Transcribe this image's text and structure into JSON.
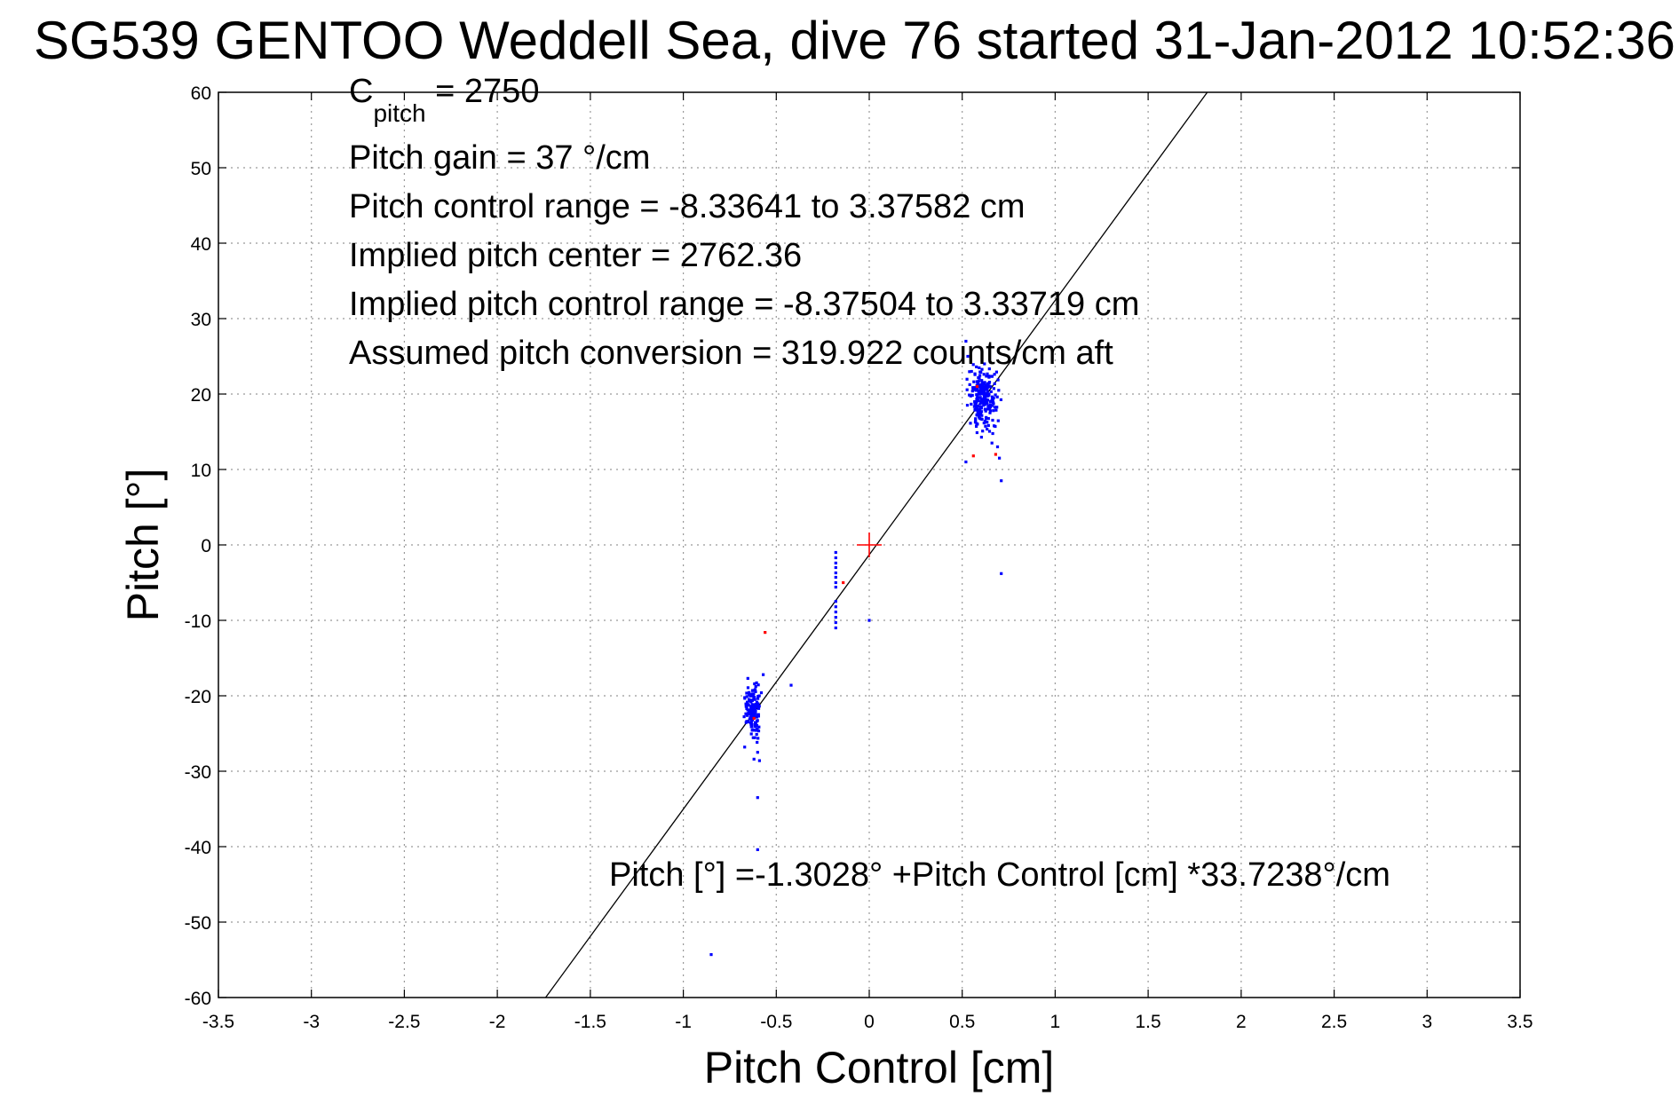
{
  "chart_data": {
    "type": "scatter",
    "title": "SG539 GENTOO Weddell Sea, dive 76 started 31-Jan-2012 10:52:36",
    "xlabel": "Pitch Control [cm]",
    "ylabel": "Pitch [°]",
    "xlim": [
      -3.5,
      3.5
    ],
    "ylim": [
      -60,
      60
    ],
    "xticks": [
      -3.5,
      -3,
      -2.5,
      -2,
      -1.5,
      -1,
      -0.5,
      0,
      0.5,
      1,
      1.5,
      2,
      2.5,
      3,
      3.5
    ],
    "xtick_labels": [
      "-3.5",
      "-3",
      "-2.5",
      "-2",
      "-1.5",
      "-1",
      "-0.5",
      "0",
      "0.5",
      "1",
      "1.5",
      "2",
      "2.5",
      "3",
      "3.5"
    ],
    "yticks": [
      -60,
      -50,
      -40,
      -30,
      -20,
      -10,
      0,
      10,
      20,
      30,
      40,
      50,
      60
    ],
    "ytick_labels": [
      "-60",
      "-50",
      "-40",
      "-30",
      "-20",
      "-10",
      "0",
      "10",
      "20",
      "30",
      "40",
      "50",
      "60"
    ],
    "grid": true,
    "annotations": {
      "c_pitch_main": "C",
      "c_pitch_sub": "pitch",
      "c_pitch_value": " = 2750",
      "line2": "Pitch gain = 37 °/cm",
      "line3": "Pitch control range = -8.33641 to 3.37582 cm",
      "line4": "Implied pitch center = 2762.36",
      "line5": "Implied pitch control range = -8.37504 to 3.33719 cm",
      "line6": "Assumed pitch conversion = 319.922 counts/cm aft",
      "fit_equation": "Pitch [°] =-1.3028° +Pitch Control [cm] *33.7238°/cm"
    },
    "fit_line": {
      "intercept": -1.3028,
      "slope": 33.7238,
      "color": "#000000"
    },
    "center_marker": {
      "x": 0,
      "y": 0,
      "color": "#ff0000"
    },
    "series": [
      {
        "color": "#0000ff",
        "clusters": [
          {
            "x_range": [
              0.5,
              0.72
            ],
            "y_range": [
              14,
              25
            ],
            "count": 240
          },
          {
            "x_range": [
              -0.68,
              -0.57
            ],
            "y_range": [
              -27,
              -17
            ],
            "count": 150
          }
        ],
        "points": [
          [
            0.52,
            27
          ],
          [
            0.53,
            25
          ],
          [
            0.55,
            23
          ],
          [
            0.52,
            11
          ],
          [
            0.7,
            11.5
          ],
          [
            0.71,
            8.5
          ],
          [
            0.71,
            -3.8
          ],
          [
            0.62,
            24
          ],
          [
            0.69,
            13
          ],
          [
            0.66,
            13.5
          ],
          [
            -0.18,
            -1
          ],
          [
            -0.18,
            -1.7
          ],
          [
            -0.18,
            -2.4
          ],
          [
            -0.18,
            -3
          ],
          [
            -0.18,
            -3.7
          ],
          [
            -0.18,
            -4.3
          ],
          [
            -0.18,
            -5
          ],
          [
            -0.18,
            -5.6
          ],
          [
            -0.18,
            -7.5
          ],
          [
            -0.18,
            -8.2
          ],
          [
            -0.18,
            -8.9
          ],
          [
            -0.18,
            -9.6
          ],
          [
            -0.18,
            -10.3
          ],
          [
            -0.18,
            -11
          ],
          [
            0,
            -10
          ],
          [
            -0.42,
            -18.6
          ],
          [
            -0.6,
            -27.5
          ],
          [
            -0.59,
            -28.6
          ],
          [
            -0.62,
            -28.4
          ],
          [
            -0.6,
            -33.5
          ],
          [
            -0.6,
            -40.4
          ],
          [
            -0.85,
            -54.3
          ],
          [
            -0.67,
            -26.8
          ],
          [
            -0.57,
            -17.2
          ]
        ]
      },
      {
        "color": "#ff0000",
        "points": [
          [
            0.56,
            11.8
          ],
          [
            0.68,
            12
          ],
          [
            -0.56,
            -11.6
          ],
          [
            -0.14,
            -5
          ],
          [
            0.58,
            21
          ],
          [
            -0.62,
            -23
          ]
        ]
      }
    ]
  }
}
